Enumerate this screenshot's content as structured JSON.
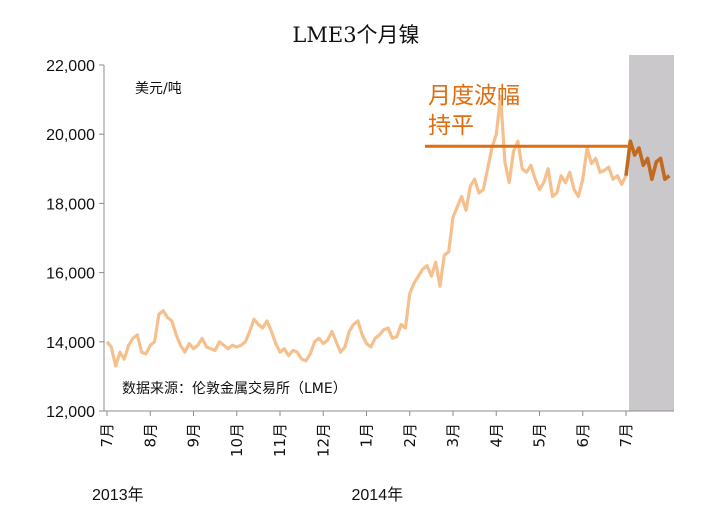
{
  "chart_data": {
    "type": "line",
    "title": "LME3个月镍",
    "unit_label": "美元/吨",
    "source": "数据来源：伦敦金属交易所（LME）",
    "annotation": {
      "lines": [
        "月度波幅",
        "持平"
      ],
      "value": 19650
    },
    "ylim": [
      12000,
      22000
    ],
    "yticks": [
      12000,
      14000,
      16000,
      18000,
      20000,
      22000
    ],
    "ytick_labels": [
      "12,000",
      "14,000",
      "16,000",
      "18,000",
      "20,000",
      "22,000"
    ],
    "xlim": [
      0,
      12.5
    ],
    "month_ticks": [
      {
        "label": "7月",
        "x": 0
      },
      {
        "label": "8月",
        "x": 1
      },
      {
        "label": "9月",
        "x": 2
      },
      {
        "label": "10月",
        "x": 3
      },
      {
        "label": "11月",
        "x": 4
      },
      {
        "label": "12月",
        "x": 5
      },
      {
        "label": "1月",
        "x": 6
      },
      {
        "label": "2月",
        "x": 7
      },
      {
        "label": "3月",
        "x": 8
      },
      {
        "label": "4月",
        "x": 9
      },
      {
        "label": "5月",
        "x": 10
      },
      {
        "label": "6月",
        "x": 11
      },
      {
        "label": "7月",
        "x": 12
      }
    ],
    "years": [
      {
        "label": "2013年",
        "x": 0
      },
      {
        "label": "2014年",
        "x": 6
      }
    ],
    "highlight_range": [
      12,
      13
    ],
    "colors": {
      "history": "#f5c08e",
      "recent": "#c46a1e",
      "annotation": "#e06d10",
      "highlight": "#cac8cb",
      "axis": "#8c8c8c"
    },
    "series": [
      {
        "role": "history",
        "x": [
          0.0,
          0.1,
          0.2,
          0.3,
          0.4,
          0.5,
          0.6,
          0.7,
          0.8,
          0.9,
          1.0,
          1.1,
          1.2,
          1.3,
          1.4,
          1.5,
          1.6,
          1.7,
          1.8,
          1.9,
          2.0,
          2.1,
          2.2,
          2.3,
          2.4,
          2.5,
          2.6,
          2.7,
          2.8,
          2.9,
          3.0,
          3.1,
          3.2,
          3.3,
          3.4,
          3.5,
          3.6,
          3.7,
          3.8,
          3.9,
          4.0,
          4.1,
          4.2,
          4.3,
          4.4,
          4.5,
          4.6,
          4.7,
          4.8,
          4.9,
          5.0,
          5.1,
          5.2,
          5.3,
          5.4,
          5.5,
          5.6,
          5.7,
          5.8,
          5.9,
          6.0,
          6.1,
          6.2,
          6.3,
          6.4,
          6.5,
          6.6,
          6.7,
          6.8,
          6.9,
          7.0,
          7.1,
          7.2,
          7.3,
          7.4,
          7.5,
          7.6,
          7.7,
          7.8,
          7.9,
          8.0,
          8.1,
          8.2,
          8.3,
          8.4,
          8.5,
          8.6,
          8.7,
          8.8,
          8.9,
          9.0,
          9.1,
          9.2,
          9.3,
          9.4,
          9.5,
          9.6,
          9.7,
          9.8,
          9.9,
          10.0,
          10.1,
          10.2,
          10.3,
          10.4,
          10.5,
          10.6,
          10.7,
          10.8,
          10.9,
          11.0,
          11.1,
          11.2,
          11.3,
          11.4,
          11.5,
          11.6,
          11.7,
          11.8,
          11.9,
          12.0
        ],
        "y": [
          14000,
          13850,
          13300,
          13700,
          13500,
          13900,
          14100,
          14200,
          13700,
          13650,
          13900,
          14000,
          14800,
          14900,
          14700,
          14600,
          14200,
          13900,
          13700,
          13950,
          13800,
          13900,
          14100,
          13850,
          13800,
          13750,
          14000,
          13900,
          13800,
          13900,
          13850,
          13900,
          14000,
          14300,
          14650,
          14500,
          14400,
          14600,
          14300,
          13950,
          13700,
          13800,
          13600,
          13750,
          13700,
          13500,
          13450,
          13650,
          14000,
          14100,
          13950,
          14050,
          14300,
          14000,
          13700,
          13850,
          14300,
          14500,
          14600,
          14200,
          13950,
          13850,
          14100,
          14200,
          14350,
          14400,
          14100,
          14150,
          14500,
          14400,
          15400,
          15700,
          15900,
          16100,
          16200,
          15900,
          16300,
          15600,
          16500,
          16600,
          17600,
          17900,
          18200,
          17800,
          18500,
          18700,
          18300,
          18400,
          19000,
          19600,
          20000,
          21100,
          19200,
          18600,
          19500,
          19800,
          19000,
          18900,
          19100,
          18700,
          18400,
          18600,
          19000,
          18200,
          18300,
          18800,
          18600,
          18900,
          18400,
          18200,
          18700,
          19600,
          19150,
          19300,
          18900,
          18950,
          19050,
          18700,
          18800,
          18550,
          18800
        ]
      },
      {
        "role": "recent",
        "x": [
          12.0,
          12.1,
          12.2,
          12.3,
          12.4,
          12.5,
          12.6,
          12.7,
          12.8,
          12.9,
          13.0
        ],
        "y": [
          18800,
          19800,
          19400,
          19600,
          19100,
          19300,
          18700,
          19200,
          19300,
          18700,
          18800
        ]
      }
    ]
  }
}
